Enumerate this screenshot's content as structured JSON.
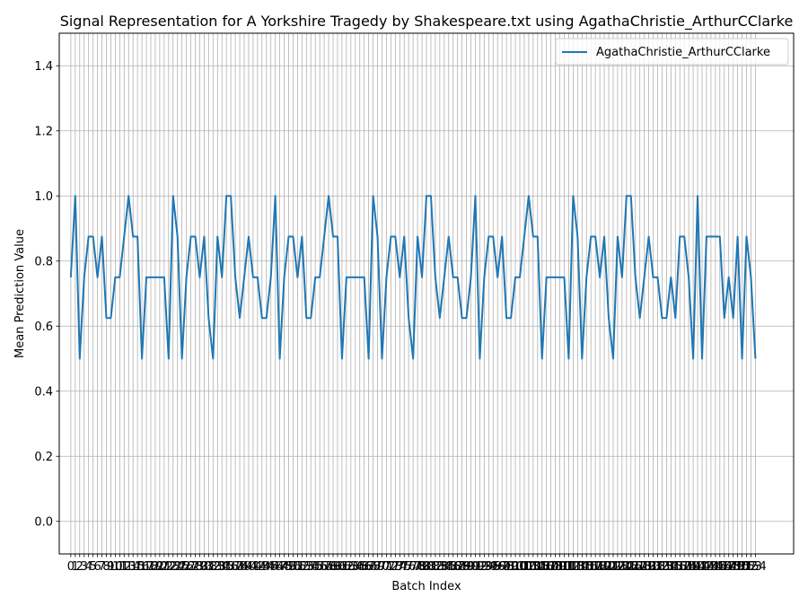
{
  "chart_data": {
    "type": "line",
    "title": "Signal Representation for A Yorkshire Tragedy by Shakespeare.txt using AgathaChristie_ArthurCClarke",
    "xlabel": "Batch Index",
    "ylabel": "Mean Prediction Value",
    "xlim": [
      -2.6,
      162.6
    ],
    "ylim": [
      -0.1,
      1.5
    ],
    "yticks": [
      0.0,
      0.2,
      0.4,
      0.6,
      0.8,
      1.0,
      1.2,
      1.4
    ],
    "ytick_labels": [
      "0.0",
      "0.2",
      "0.4",
      "0.6",
      "0.8",
      "1.0",
      "1.2",
      "1.4"
    ],
    "grid": true,
    "legend_position": "upper right",
    "series": [
      {
        "name": "AgathaChristie_ArthurCClarke",
        "color": "#1f77b4",
        "x_start": 0,
        "values": [
          0.75,
          1.0,
          0.5,
          0.75,
          0.875,
          0.875,
          0.75,
          0.875,
          0.625,
          0.625,
          0.75,
          0.75,
          0.875,
          1.0,
          0.875,
          0.875,
          0.5,
          0.75,
          0.75,
          0.75,
          0.75,
          0.75,
          0.5,
          1.0,
          0.875,
          0.5,
          0.75,
          0.875,
          0.875,
          0.75,
          0.875,
          0.625,
          0.5,
          0.875,
          0.75,
          1.0,
          1.0,
          0.75,
          0.625,
          0.75,
          0.875,
          0.75,
          0.75,
          0.625,
          0.625,
          0.75,
          1.0,
          0.5,
          0.75,
          0.875,
          0.875,
          0.75,
          0.875,
          0.625,
          0.625,
          0.75,
          0.75,
          0.875,
          1.0,
          0.875,
          0.875,
          0.5,
          0.75,
          0.75,
          0.75,
          0.75,
          0.75,
          0.5,
          1.0,
          0.875,
          0.5,
          0.75,
          0.875,
          0.875,
          0.75,
          0.875,
          0.625,
          0.5,
          0.875,
          0.75,
          1.0,
          1.0,
          0.75,
          0.625,
          0.75,
          0.875,
          0.75,
          0.75,
          0.625,
          0.625,
          0.75,
          1.0,
          0.5,
          0.75,
          0.875,
          0.875,
          0.75,
          0.875,
          0.625,
          0.625,
          0.75,
          0.75,
          0.875,
          1.0,
          0.875,
          0.875,
          0.5,
          0.75,
          0.75,
          0.75,
          0.75,
          0.75,
          0.5,
          1.0,
          0.875,
          0.5,
          0.75,
          0.875,
          0.875,
          0.75,
          0.875,
          0.625,
          0.5,
          0.875,
          0.75,
          1.0,
          1.0,
          0.75,
          0.625,
          0.75,
          0.875,
          0.75,
          0.75,
          0.625,
          0.625,
          0.75,
          0.625,
          0.875,
          0.875,
          0.75,
          0.5,
          1.0,
          0.5,
          0.875,
          0.875,
          0.875,
          0.875,
          0.625,
          0.75,
          0.625,
          0.875,
          0.5,
          0.875,
          0.75,
          0.5
        ]
      }
    ]
  }
}
